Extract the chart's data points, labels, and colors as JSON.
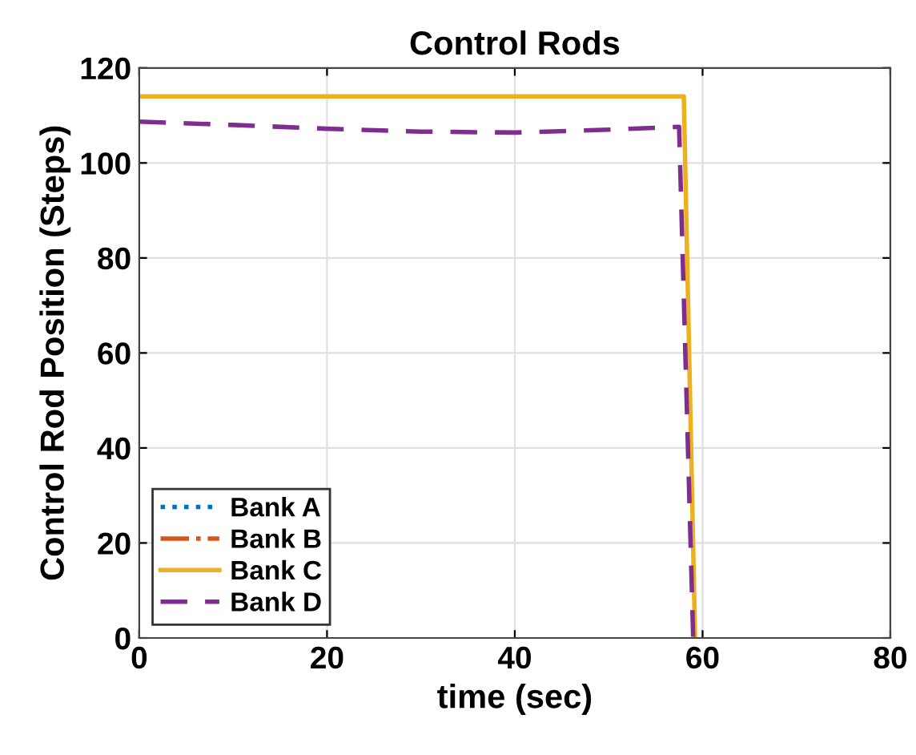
{
  "chart_data": {
    "type": "line",
    "title": "Control Rods",
    "xlabel": "time (sec)",
    "ylabel": "Control Rod Position (Steps)",
    "xlim": [
      0,
      80
    ],
    "ylim": [
      0,
      120
    ],
    "xticks": [
      0,
      20,
      40,
      60,
      80
    ],
    "yticks": [
      0,
      20,
      40,
      60,
      80,
      100,
      120
    ],
    "grid": true,
    "legend": "bottom left",
    "series": [
      {
        "name": "Bank A",
        "color": "#0072bd",
        "line_style": "dotted"
      },
      {
        "name": "Bank B",
        "color": "#d95319",
        "line_style": "dashdot"
      },
      {
        "name": "Bank C",
        "color": "#edb120",
        "line_style": "solid",
        "x": [
          0,
          58,
          59.2
        ],
        "values": [
          114,
          114,
          0
        ]
      },
      {
        "name": "Bank D",
        "color": "#7e2f8e",
        "line_style": "dashed",
        "x": [
          0,
          10,
          20,
          30,
          40,
          50,
          57.5,
          59
        ],
        "values": [
          108.7,
          108,
          107.2,
          106.6,
          106.4,
          107,
          107.6,
          0
        ]
      }
    ]
  }
}
